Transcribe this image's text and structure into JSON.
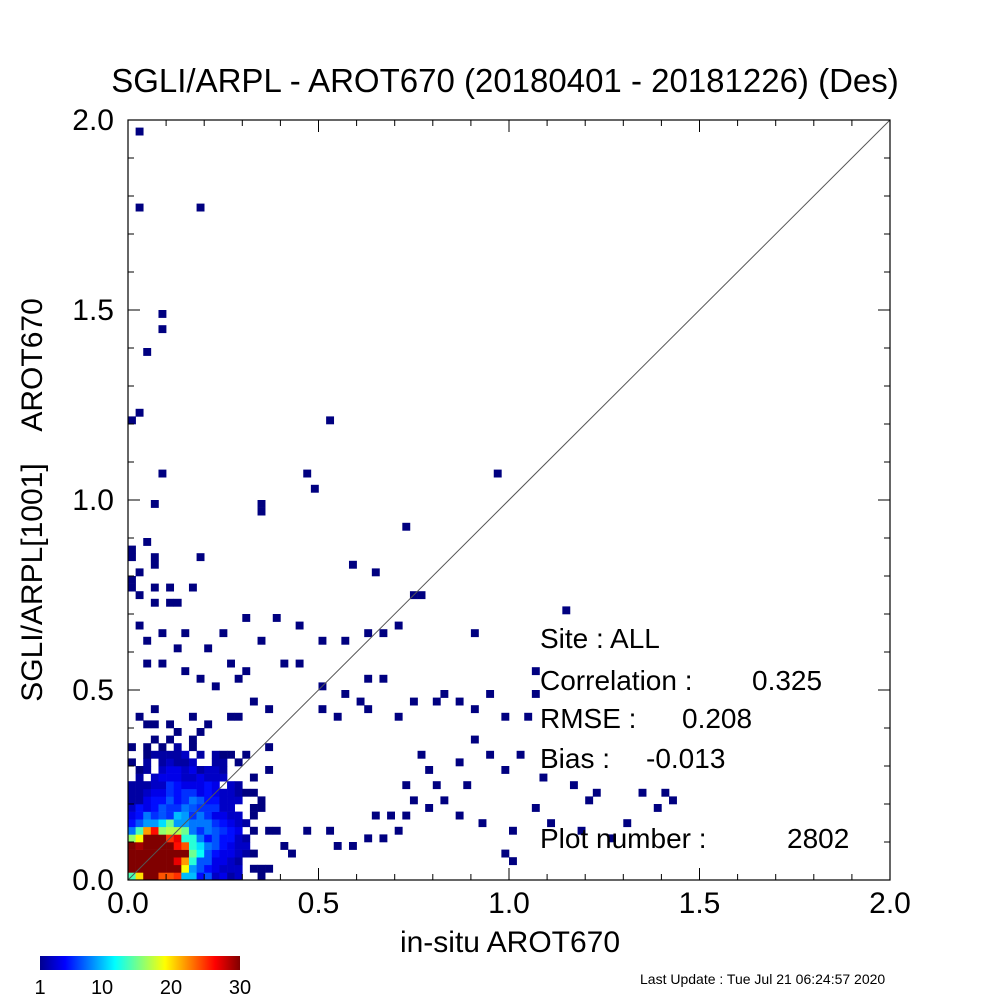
{
  "chart_data": {
    "type": "heatmap",
    "title": "SGLI/ARPL - AROT670 (20180401 - 20181226) (Des)",
    "xlabel": "in-situ AROT670",
    "ylabel": "SGLI/ARPL[1001]    AROT670",
    "xlim": [
      0.0,
      2.0
    ],
    "ylim": [
      0.0,
      2.0
    ],
    "x_ticks": [
      "0.0",
      "0.5",
      "1.0",
      "1.5",
      "2.0"
    ],
    "y_ticks": [
      "0.0",
      "0.5",
      "1.0",
      "1.5",
      "2.0"
    ],
    "one_to_one_line": true,
    "bin_size": 0.02,
    "stats": {
      "site_label": "Site : ALL",
      "correlation_label": "Correlation :",
      "correlation_value": "0.325",
      "rmse_label": "RMSE :",
      "rmse_value": "0.208",
      "bias_label": "Bias :",
      "bias_value": "-0.013",
      "plot_number_label": "Plot number :",
      "plot_number_value": "2802"
    },
    "colorbar": {
      "min": 1,
      "max": 30,
      "tick_labels": [
        "1",
        "10",
        "20",
        "30"
      ],
      "tick_values": [
        1,
        10,
        20,
        30
      ],
      "colormap": "jet"
    },
    "outliers": [
      [
        0.03,
        1.97
      ],
      [
        0.03,
        1.76
      ],
      [
        0.19,
        1.77
      ],
      [
        0.09,
        1.48
      ],
      [
        0.09,
        1.44
      ],
      [
        0.05,
        1.38
      ],
      [
        0.03,
        1.22
      ],
      [
        0.01,
        1.2
      ],
      [
        0.53,
        1.2
      ],
      [
        0.09,
        1.06
      ],
      [
        0.47,
        1.06
      ],
      [
        0.97,
        1.06
      ],
      [
        0.49,
        1.02
      ],
      [
        0.07,
        0.98
      ],
      [
        0.35,
        0.98
      ],
      [
        0.35,
        0.96
      ],
      [
        0.73,
        0.94
      ],
      [
        0.05,
        0.88
      ],
      [
        0.01,
        0.86
      ],
      [
        0.01,
        0.84
      ],
      [
        0.19,
        0.84
      ],
      [
        0.07,
        0.84
      ],
      [
        0.59,
        0.82
      ],
      [
        0.65,
        0.8
      ],
      [
        0.07,
        0.82
      ],
      [
        0.03,
        0.8
      ],
      [
        0.01,
        0.78
      ],
      [
        0.01,
        0.76
      ],
      [
        0.07,
        0.76
      ],
      [
        0.11,
        0.76
      ],
      [
        0.17,
        0.76
      ],
      [
        0.75,
        0.74
      ],
      [
        0.77,
        0.74
      ],
      [
        0.03,
        0.74
      ],
      [
        1.15,
        0.7
      ],
      [
        0.07,
        0.72
      ],
      [
        0.11,
        0.72
      ],
      [
        0.13,
        0.72
      ],
      [
        0.31,
        0.68
      ],
      [
        0.39,
        0.68
      ],
      [
        0.45,
        0.66
      ],
      [
        0.25,
        0.64
      ],
      [
        0.15,
        0.64
      ],
      [
        0.09,
        0.64
      ],
      [
        0.03,
        0.66
      ],
      [
        0.63,
        0.64
      ],
      [
        0.67,
        0.64
      ],
      [
        0.71,
        0.66
      ],
      [
        0.91,
        0.64
      ],
      [
        0.51,
        0.62
      ],
      [
        0.57,
        0.62
      ],
      [
        0.35,
        0.62
      ],
      [
        0.21,
        0.6
      ],
      [
        0.13,
        0.6
      ],
      [
        0.05,
        0.62
      ],
      [
        1.07,
        0.54
      ],
      [
        1.07,
        0.48
      ],
      [
        1.05,
        0.42
      ],
      [
        0.99,
        0.42
      ],
      [
        0.91,
        0.44
      ],
      [
        0.87,
        0.46
      ],
      [
        0.83,
        0.48
      ],
      [
        0.81,
        0.46
      ],
      [
        0.95,
        0.48
      ],
      [
        0.75,
        0.46
      ],
      [
        0.71,
        0.42
      ],
      [
        0.63,
        0.44
      ],
      [
        0.61,
        0.46
      ],
      [
        0.55,
        0.42
      ],
      [
        0.51,
        0.5
      ],
      [
        0.45,
        0.58
      ],
      [
        0.41,
        0.56
      ],
      [
        1.03,
        0.32
      ],
      [
        0.99,
        0.28
      ],
      [
        1.09,
        0.26
      ],
      [
        0.95,
        0.32
      ],
      [
        0.91,
        0.36
      ],
      [
        0.87,
        0.3
      ],
      [
        1.17,
        0.24
      ],
      [
        1.23,
        0.22
      ],
      [
        1.21,
        0.2
      ],
      [
        1.35,
        0.22
      ],
      [
        1.41,
        0.22
      ],
      [
        1.43,
        0.2
      ],
      [
        1.39,
        0.18
      ],
      [
        1.07,
        0.18
      ],
      [
        1.11,
        0.14
      ],
      [
        1.19,
        0.12
      ],
      [
        1.27,
        0.1
      ],
      [
        1.31,
        0.14
      ],
      [
        1.01,
        0.12
      ],
      [
        0.99,
        0.06
      ],
      [
        1.01,
        0.04
      ],
      [
        0.93,
        0.14
      ],
      [
        0.87,
        0.16
      ],
      [
        0.83,
        0.2
      ],
      [
        0.81,
        0.24
      ],
      [
        0.89,
        0.24
      ],
      [
        0.79,
        0.28
      ],
      [
        0.77,
        0.32
      ],
      [
        0.79,
        0.18
      ],
      [
        0.75,
        0.2
      ],
      [
        0.73,
        0.24
      ],
      [
        0.73,
        0.16
      ],
      [
        0.69,
        0.16
      ],
      [
        0.71,
        0.12
      ],
      [
        0.67,
        0.1
      ],
      [
        0.63,
        0.1
      ],
      [
        0.65,
        0.16
      ],
      [
        0.59,
        0.08
      ],
      [
        0.55,
        0.08
      ],
      [
        0.53,
        0.12
      ],
      [
        0.47,
        0.12
      ],
      [
        0.41,
        0.08
      ],
      [
        0.43,
        0.06
      ],
      [
        0.37,
        0.12
      ],
      [
        0.23,
        0.14
      ],
      [
        0.51,
        0.44
      ],
      [
        0.57,
        0.48
      ],
      [
        0.63,
        0.52
      ],
      [
        0.67,
        0.52
      ],
      [
        0.27,
        0.42
      ],
      [
        0.33,
        0.46
      ],
      [
        0.37,
        0.44
      ],
      [
        0.23,
        0.5
      ],
      [
        0.29,
        0.52
      ],
      [
        0.19,
        0.52
      ],
      [
        0.15,
        0.54
      ],
      [
        0.09,
        0.56
      ],
      [
        0.05,
        0.56
      ],
      [
        0.27,
        0.56
      ],
      [
        0.31,
        0.54
      ]
    ]
  }
}
